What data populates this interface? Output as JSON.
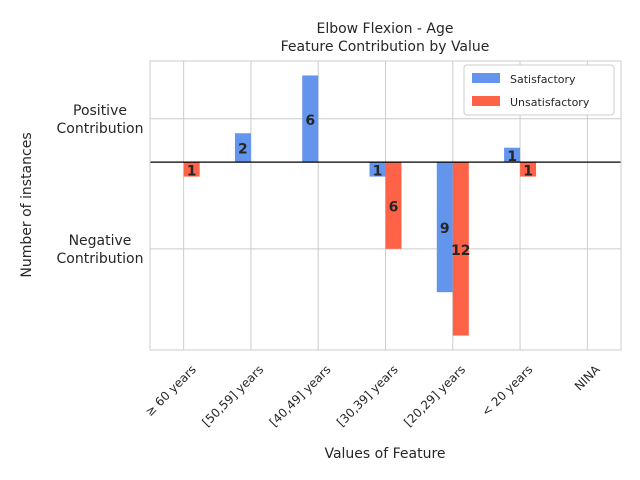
{
  "chart_data": {
    "type": "bar",
    "title": "Elbow Flexion - Age",
    "subtitle": "Feature Contribution by Value",
    "xlabel": "Values of Feature",
    "ylabel": "Number of instances",
    "ytick_labels": [
      "Positive\nContribution",
      "Negative\nContribution"
    ],
    "categories": [
      "≥ 60 years",
      "[50,59] years",
      "[40,49] years",
      "[30,39] years",
      "[20,29] years",
      "< 20 years",
      "NINA"
    ],
    "ylim": [
      -13,
      7
    ],
    "grid": true,
    "legend_position": "top-right",
    "series": [
      {
        "name": "Satisfactory",
        "color": "#6495ED",
        "values": [
          0,
          2,
          6,
          -1,
          -9,
          1,
          0
        ],
        "labels": [
          "",
          "2",
          "6",
          "1",
          "9",
          "1",
          ""
        ]
      },
      {
        "name": "Unsatisfactory",
        "color": "#FF6347",
        "values": [
          -1,
          0,
          0,
          -6,
          -12,
          -1,
          0
        ],
        "labels": [
          "1",
          "",
          "",
          "6",
          "12",
          "1",
          ""
        ]
      }
    ]
  }
}
